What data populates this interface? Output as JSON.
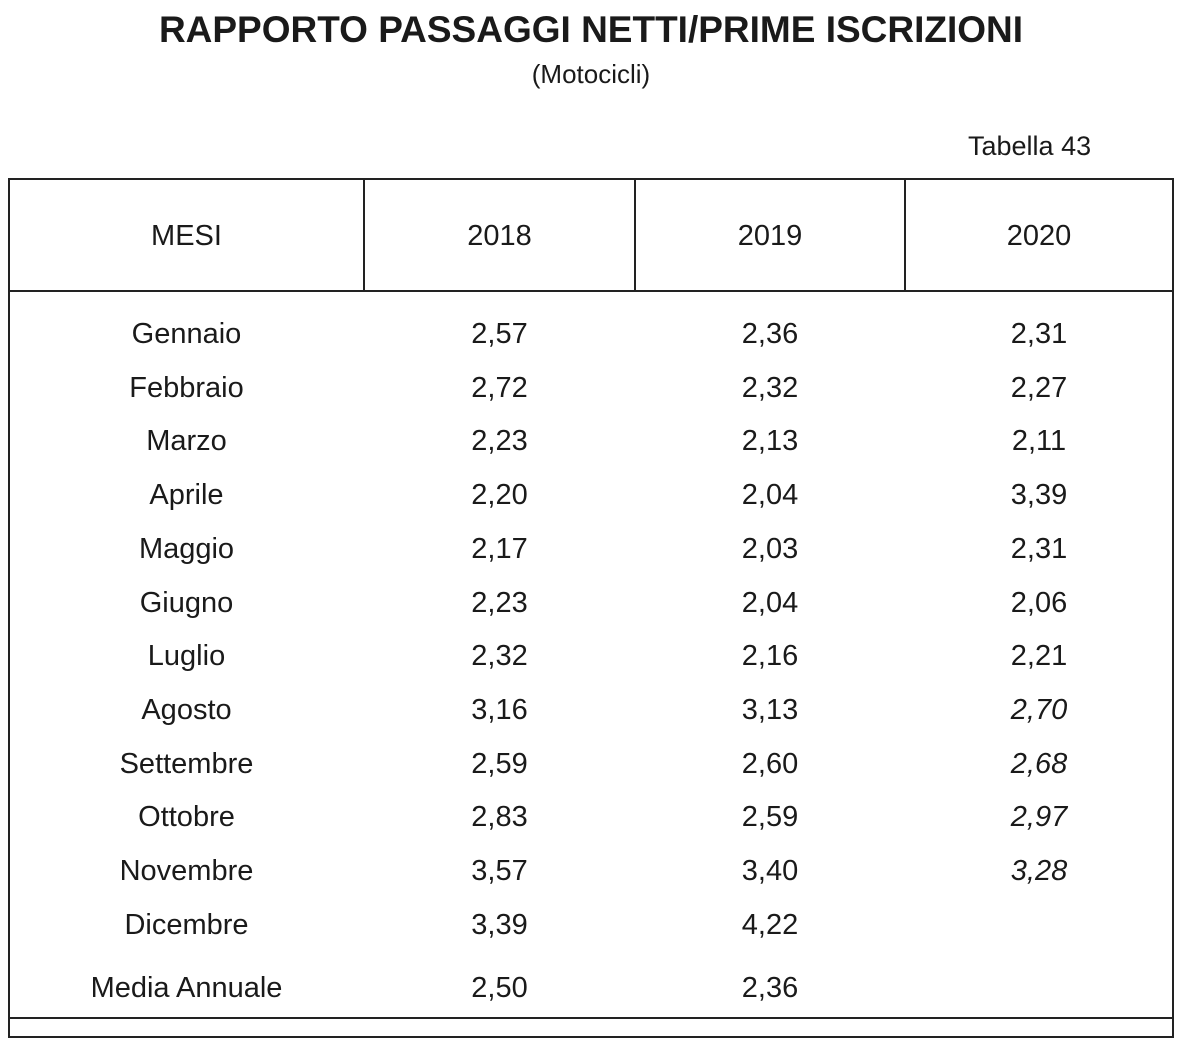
{
  "document": {
    "title": "RAPPORTO PASSAGGI NETTI/PRIME ISCRIZIONI",
    "subtitle": "(Motocicli)",
    "table_label": "Tabella 43"
  },
  "table": {
    "headers": [
      "MESI",
      "2018",
      "2019",
      "2020"
    ],
    "rows": [
      {
        "month": "Gennaio",
        "y2018": "2,57",
        "y2019": "2,36",
        "y2020": "2,31",
        "y2020_italic": false
      },
      {
        "month": "Febbraio",
        "y2018": "2,72",
        "y2019": "2,32",
        "y2020": "2,27",
        "y2020_italic": false
      },
      {
        "month": "Marzo",
        "y2018": "2,23",
        "y2019": "2,13",
        "y2020": "2,11",
        "y2020_italic": false
      },
      {
        "month": "Aprile",
        "y2018": "2,20",
        "y2019": "2,04",
        "y2020": "3,39",
        "y2020_italic": false
      },
      {
        "month": "Maggio",
        "y2018": "2,17",
        "y2019": "2,03",
        "y2020": "2,31",
        "y2020_italic": false
      },
      {
        "month": "Giugno",
        "y2018": "2,23",
        "y2019": "2,04",
        "y2020": "2,06",
        "y2020_italic": false
      },
      {
        "month": "Luglio",
        "y2018": "2,32",
        "y2019": "2,16",
        "y2020": "2,21",
        "y2020_italic": false
      },
      {
        "month": "Agosto",
        "y2018": "3,16",
        "y2019": "3,13",
        "y2020": "2,70",
        "y2020_italic": true
      },
      {
        "month": "Settembre",
        "y2018": "2,59",
        "y2019": "2,60",
        "y2020": "2,68",
        "y2020_italic": true
      },
      {
        "month": "Ottobre",
        "y2018": "2,83",
        "y2019": "2,59",
        "y2020": "2,97",
        "y2020_italic": true
      },
      {
        "month": "Novembre",
        "y2018": "3,57",
        "y2019": "3,40",
        "y2020": "3,28",
        "y2020_italic": true
      },
      {
        "month": "Dicembre",
        "y2018": "3,39",
        "y2019": "4,22",
        "y2020": "",
        "y2020_italic": false
      }
    ],
    "annual_average": {
      "month": "Media Annuale",
      "y2018": "2,50",
      "y2019": "2,36",
      "y2020": ""
    }
  }
}
